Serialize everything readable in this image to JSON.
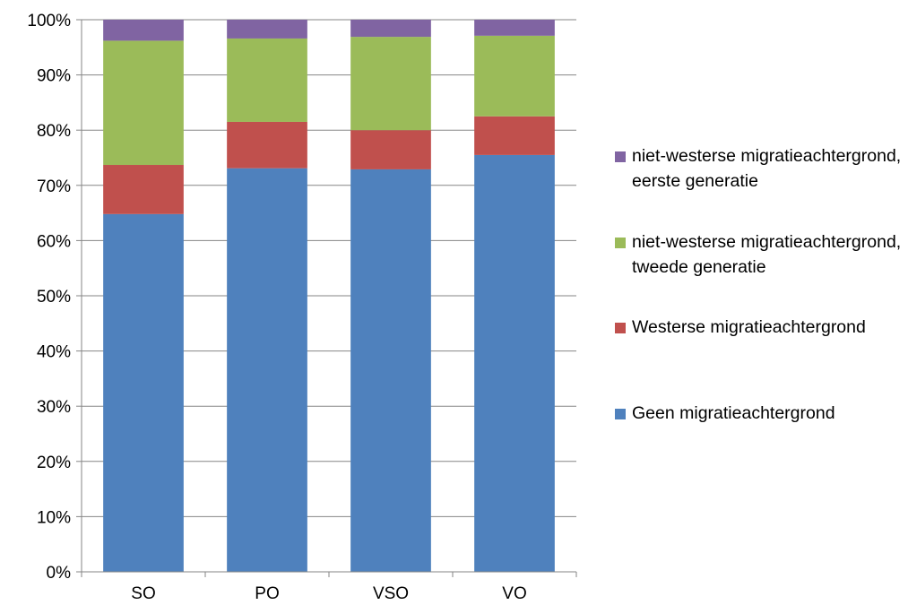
{
  "chart_data": {
    "type": "bar",
    "stacked": true,
    "percent": true,
    "categories": [
      "SO",
      "PO",
      "VSO",
      "VO"
    ],
    "series": [
      {
        "name": "Geen migratieachtergrond",
        "color": "#4F81BD",
        "values": [
          64.8,
          73.1,
          72.9,
          75.5
        ]
      },
      {
        "name": "Westerse migratieachtergrond",
        "color": "#C0504D",
        "values": [
          8.9,
          8.4,
          7.1,
          7.0
        ]
      },
      {
        "name": "niet-westerse migratieachtergrond, tweede generatie",
        "color": "#9BBB59",
        "values": [
          22.5,
          15.1,
          16.9,
          14.6
        ]
      },
      {
        "name": "niet-westerse migratieachtergrond, eerste generatie",
        "color": "#8064A2",
        "values": [
          3.8,
          3.4,
          3.1,
          2.9
        ]
      }
    ],
    "yticks": [
      "0%",
      "10%",
      "20%",
      "30%",
      "40%",
      "50%",
      "60%",
      "70%",
      "80%",
      "90%",
      "100%"
    ],
    "ylim": [
      0,
      100
    ],
    "grid": true,
    "legend_position": "right",
    "legend_order": "reversed"
  }
}
